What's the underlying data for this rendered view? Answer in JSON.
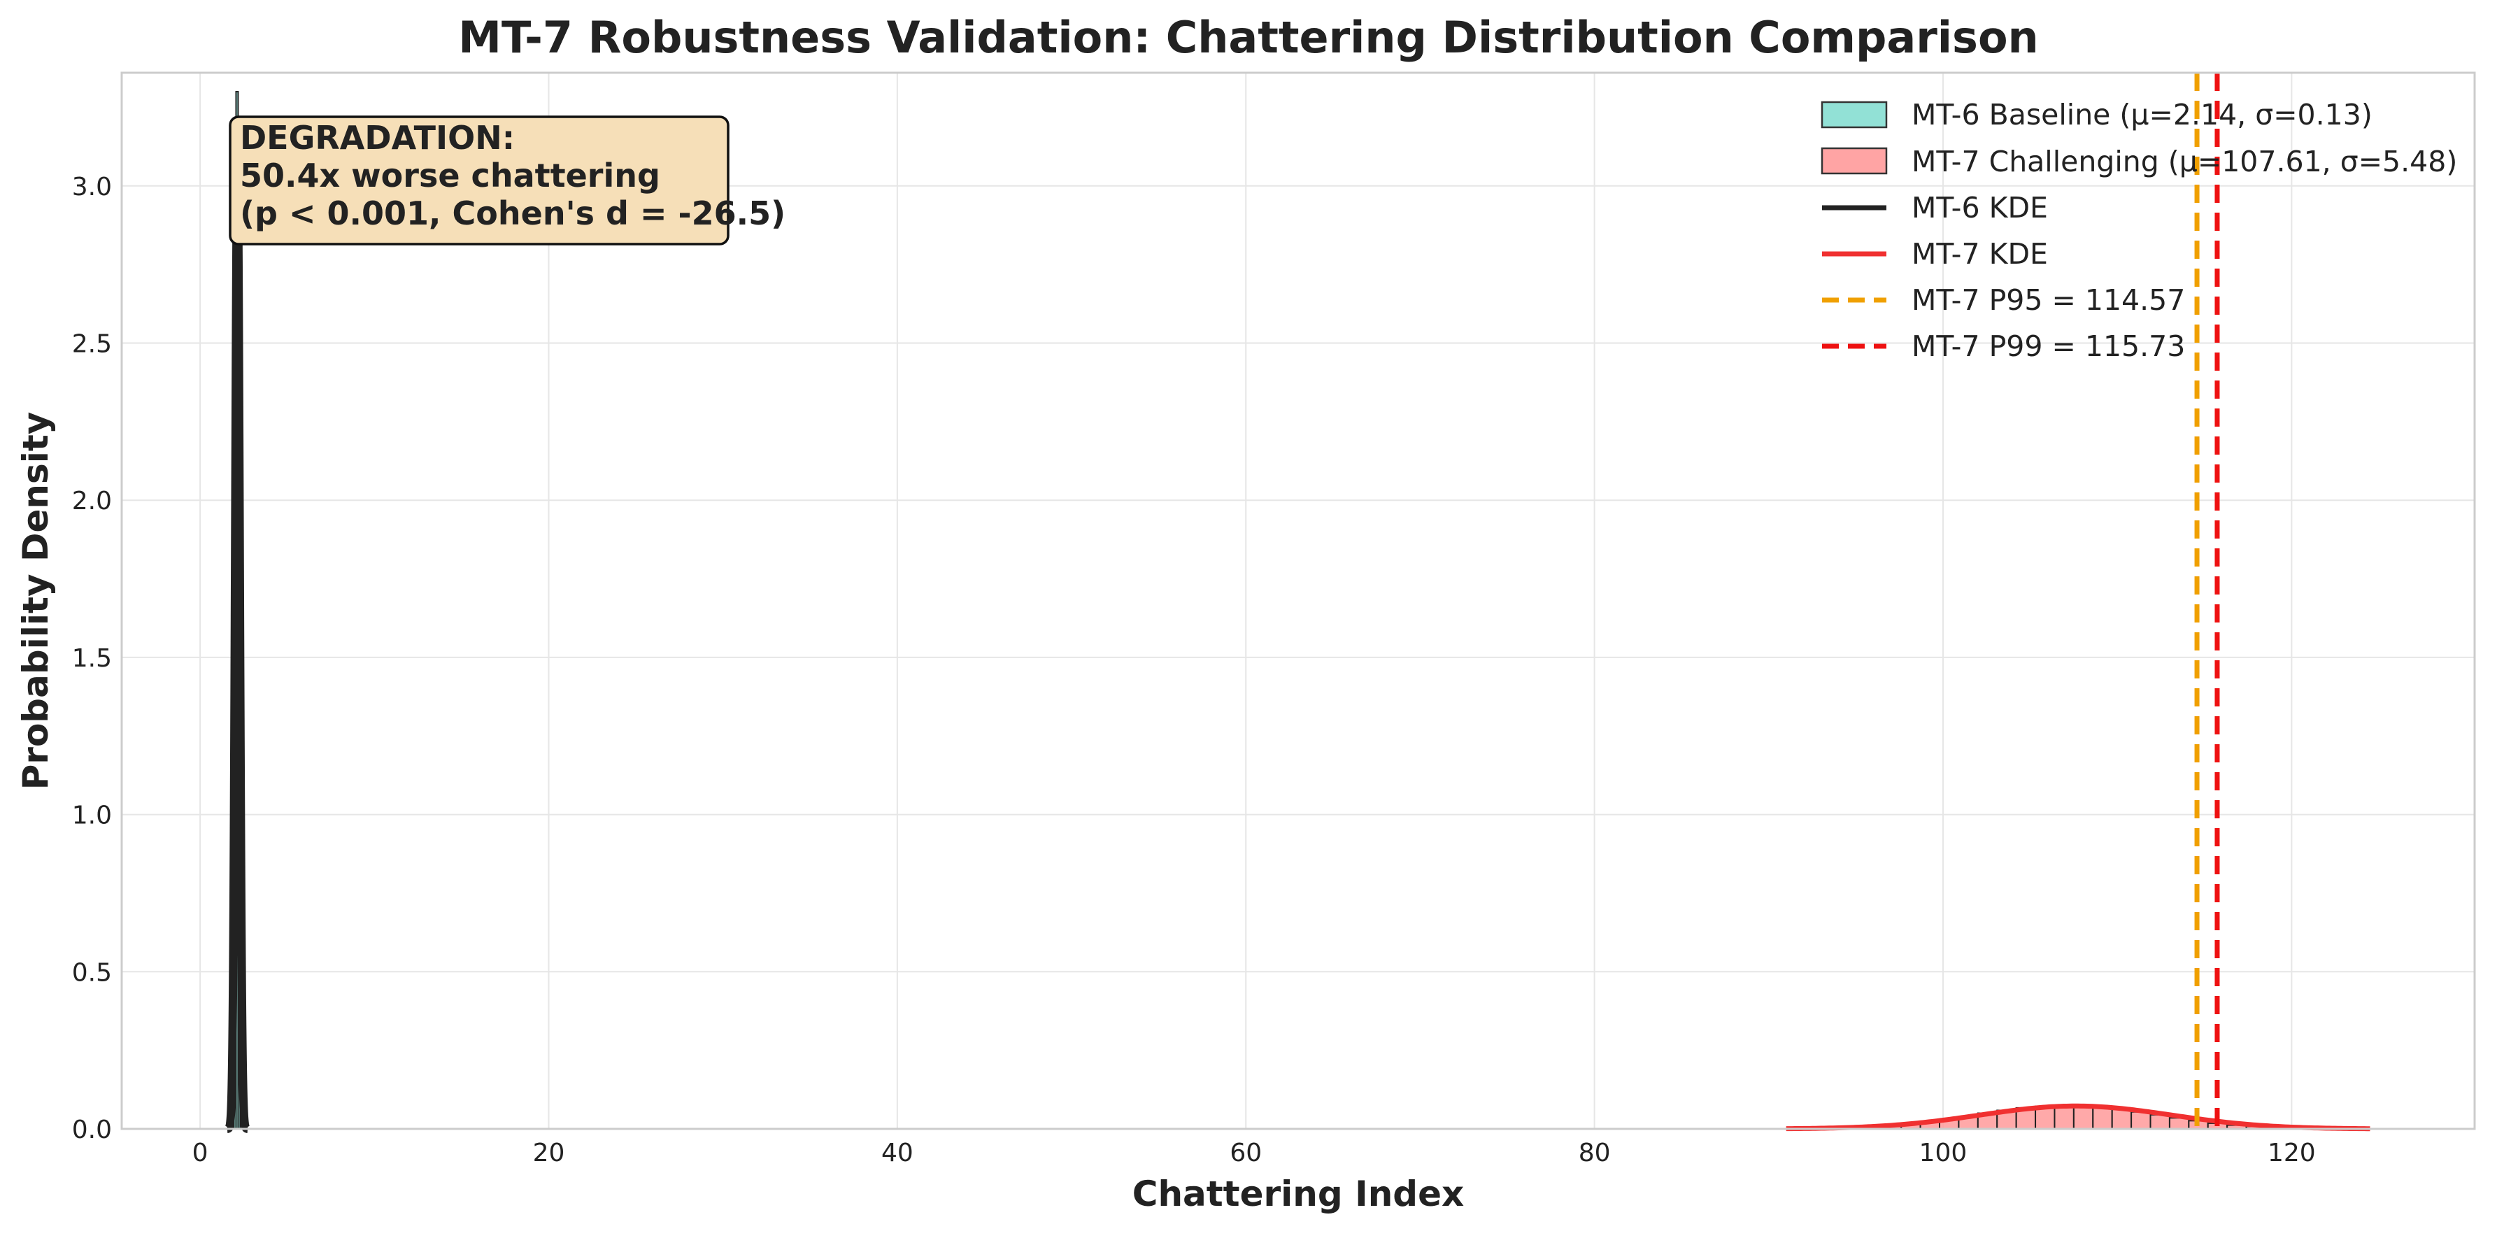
{
  "chart_data": {
    "type": "histogram",
    "title": "MT-7 Robustness Validation: Chattering Distribution Comparison",
    "xlabel": "Chattering Index",
    "ylabel": "Probability Density",
    "xlim": [
      -4.5,
      130.5
    ],
    "ylim": [
      0,
      3.36
    ],
    "xticks": [
      0,
      20,
      40,
      60,
      80,
      100,
      120
    ],
    "yticks": [
      0.0,
      0.5,
      1.0,
      1.5,
      2.0,
      2.5,
      3.0
    ],
    "xtick_labels": [
      "0",
      "20",
      "40",
      "60",
      "80",
      "100",
      "120"
    ],
    "ytick_labels": [
      "0.0",
      "0.5",
      "1.0",
      "1.5",
      "2.0",
      "2.5",
      "3.0"
    ],
    "grid": true,
    "legend_position": "top-right",
    "series": [
      {
        "name": "MT-6 Baseline (μ=2.14, σ=0.13)",
        "kind": "histogram",
        "color": "#7fdccf",
        "bins": [
          1.7,
          1.82,
          1.94,
          2.06,
          2.18,
          2.3,
          2.42,
          2.54
        ],
        "densities": [
          0.2,
          0.95,
          2.3,
          3.3,
          2.6,
          1.2,
          0.3
        ]
      },
      {
        "name": "MT-7 Challenging (μ=107.61, σ=5.48)",
        "kind": "histogram",
        "color": "#ff9a9a",
        "bins": [
          91,
          92.1,
          93.2,
          94.3,
          95.4,
          96.5,
          97.6,
          98.7,
          99.8,
          100.9,
          102,
          103.1,
          104.2,
          105.3,
          106.4,
          107.5,
          108.6,
          109.7,
          110.8,
          111.9,
          113,
          114.1,
          115.2,
          116.3,
          117.4,
          118.5,
          119.6,
          120.7,
          121.8,
          122.9,
          124,
          125.1
        ],
        "densities": [
          0.001,
          0.002,
          0.003,
          0.005,
          0.007,
          0.011,
          0.016,
          0.022,
          0.03,
          0.04,
          0.05,
          0.059,
          0.067,
          0.072,
          0.074,
          0.073,
          0.069,
          0.062,
          0.054,
          0.045,
          0.035,
          0.026,
          0.018,
          0.012,
          0.008,
          0.005,
          0.003,
          0.002,
          0.001,
          0.001,
          0.0005
        ]
      },
      {
        "name": "MT-6 KDE",
        "kind": "kde",
        "color": "#222222",
        "mean": 2.14,
        "sd": 0.13
      },
      {
        "name": "MT-7 KDE",
        "kind": "kde",
        "color": "#f03030",
        "mean": 107.61,
        "sd": 5.48
      }
    ],
    "reference_lines": [
      {
        "name": "MT-7 P95 = 114.57",
        "x": 114.57,
        "color": "#f0a000",
        "style": "dashed"
      },
      {
        "name": "MT-7 P99 = 115.73",
        "x": 115.73,
        "color": "#ee1111",
        "style": "dashed"
      }
    ],
    "annotation": {
      "lines": [
        "DEGRADATION:",
        "50.4x worse chattering",
        "(p < 0.001, Cohen's d = -26.5)"
      ],
      "background": "#f6dfb8"
    }
  }
}
